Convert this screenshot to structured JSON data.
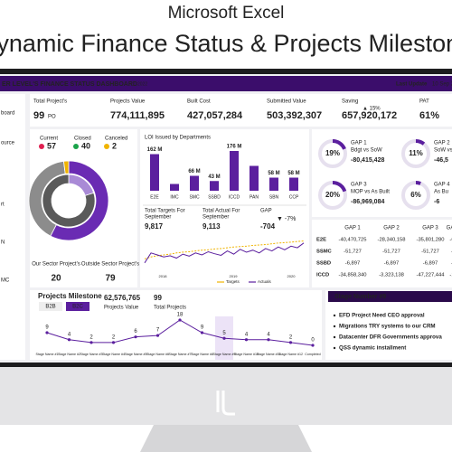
{
  "banner": {
    "app": "Microsoft Excel",
    "title": "Dynamic Finance Status & Projects Milestone"
  },
  "header": {
    "title": "ER LEVEL'S FINANCE STATUS DASHBOARD",
    "year": "2022",
    "update_label": "Last Update",
    "update_date": "10 Sep 2"
  },
  "sidebar": [
    "board",
    "ource",
    "rt",
    "N",
    "MC"
  ],
  "kpis": [
    {
      "label": "Total Project's",
      "value": "99",
      "unit": "PO"
    },
    {
      "label": "Projects Value",
      "value": "774,111,895"
    },
    {
      "label": "Built Cost",
      "value": "427,057,284"
    },
    {
      "label": "Submitted Value",
      "value": "503,392,307"
    },
    {
      "label": "Saving",
      "value": "657,920,172",
      "change": "▲ 15%"
    },
    {
      "label": "PAT",
      "value": "61%"
    }
  ],
  "status": {
    "type": "donut",
    "labels": [
      "Current",
      "Closed",
      "Canceled"
    ],
    "values": [
      57,
      40,
      2
    ],
    "colors": [
      "#6a2bb3",
      "#8c8c8c",
      "#f0b400"
    ],
    "sectors": {
      "labels": [
        "Our Sector Project's",
        "Outside Sector Project's"
      ],
      "values": [
        20,
        79
      ],
      "colors": [
        "#a98ad6",
        "#5a5a5a"
      ]
    }
  },
  "loi": {
    "type": "bar",
    "title": "LOI Issued by Departments",
    "categories": [
      "E2E",
      "IMC",
      "SMC",
      "SSBD",
      "ICCD",
      "PAN",
      "SBN",
      "CCP"
    ],
    "values": [
      162,
      30,
      66,
      43,
      176,
      110,
      58,
      58
    ],
    "value_labels": [
      "162 M",
      null,
      "66 M",
      "43 M",
      "176 M",
      null,
      "58 M",
      "58 M"
    ],
    "color": "#5b1f9e"
  },
  "trend": {
    "type": "line",
    "targets": {
      "label": [
        "Total Targets For",
        "September"
      ],
      "value": "9,817"
    },
    "actual": {
      "label": [
        "Total Actual For",
        "September"
      ],
      "value": "9,113"
    },
    "gap": {
      "label": "GAP",
      "change": "▼ -7%",
      "value": "-704"
    },
    "x_labels": [
      "2018",
      "2019",
      "2020"
    ],
    "ylim": [
      0,
      100
    ],
    "series": [
      {
        "name": "Targets",
        "color": "#f0b400",
        "values": [
          40,
          45,
          48,
          50,
          52,
          55,
          57,
          58,
          60,
          62,
          63,
          65,
          66,
          68,
          70,
          71,
          72,
          74,
          75,
          76,
          78,
          80,
          81,
          82,
          84,
          85
        ]
      },
      {
        "name": "Actuals",
        "color": "#5b1f9e",
        "values": [
          30,
          55,
          50,
          45,
          48,
          42,
          52,
          47,
          55,
          50,
          58,
          53,
          49,
          60,
          52,
          64,
          57,
          62,
          55,
          66,
          60,
          70,
          63,
          72,
          68,
          80
        ]
      }
    ]
  },
  "gaps": [
    {
      "title": "GAP 1",
      "value": 19,
      "label": "19%",
      "subtitle": "Bdgt vs SoW",
      "amount": "-80,415,428"
    },
    {
      "title": "GAP 2",
      "value": 11,
      "label": "11%",
      "subtitle": "SoW vs",
      "amount": "-46,5"
    },
    {
      "title": "GAP 3",
      "value": 20,
      "label": "20%",
      "subtitle": "MOP vs As Built",
      "amount": "-86,969,084"
    },
    {
      "title": "GAP 4",
      "value": 6,
      "label": "6%",
      "subtitle": "As Bu",
      "amount": "-6"
    }
  ],
  "gap_table": {
    "columns": [
      "GAP 1",
      "GAP 2",
      "GAP 3",
      "GAP"
    ],
    "rows": [
      [
        "E2E",
        "-40,470,725",
        "-28,340,158",
        "-35,801,280",
        "-6"
      ],
      [
        "SSMC",
        "-51,727",
        "-51,727",
        "-51,727",
        "-"
      ],
      [
        "SSBD",
        "-6,897",
        "-6,897",
        "-6,897",
        "-"
      ],
      [
        "ICCD",
        "-34,858,340",
        "-3,323,138",
        "-47,227,444",
        "-1"
      ]
    ]
  },
  "milestone": {
    "title": "Projects Milestone",
    "tabs": [
      "B2B",
      "B2C"
    ],
    "value": "62,576,765",
    "value_label": "Projects Value",
    "count": "99",
    "count_label": "Total Projects",
    "chart": {
      "type": "line",
      "categories": [
        "Stage Name #1",
        "Stage Name #2",
        "Stage Name #3",
        "Stage Name #4",
        "Stage Name #5",
        "Stage Name #6",
        "Stage Name #7",
        "Stage Name #8",
        "Stage Name #9",
        "Stage Name #10",
        "Stage Name #11",
        "Stage Name #12",
        "Completed"
      ],
      "values": [
        9,
        4,
        2,
        2,
        6,
        7,
        18,
        9,
        5,
        4,
        4,
        2,
        0
      ],
      "color": "#5b1f9e",
      "highlight": 8
    }
  },
  "stage": {
    "title": "Stage Number #9",
    "items": [
      "EFD Project Need CEO approval",
      "Migrations TRY systems to our CRM",
      "Datacenter DFR Governments approva",
      "QSS dynamic installment"
    ]
  }
}
